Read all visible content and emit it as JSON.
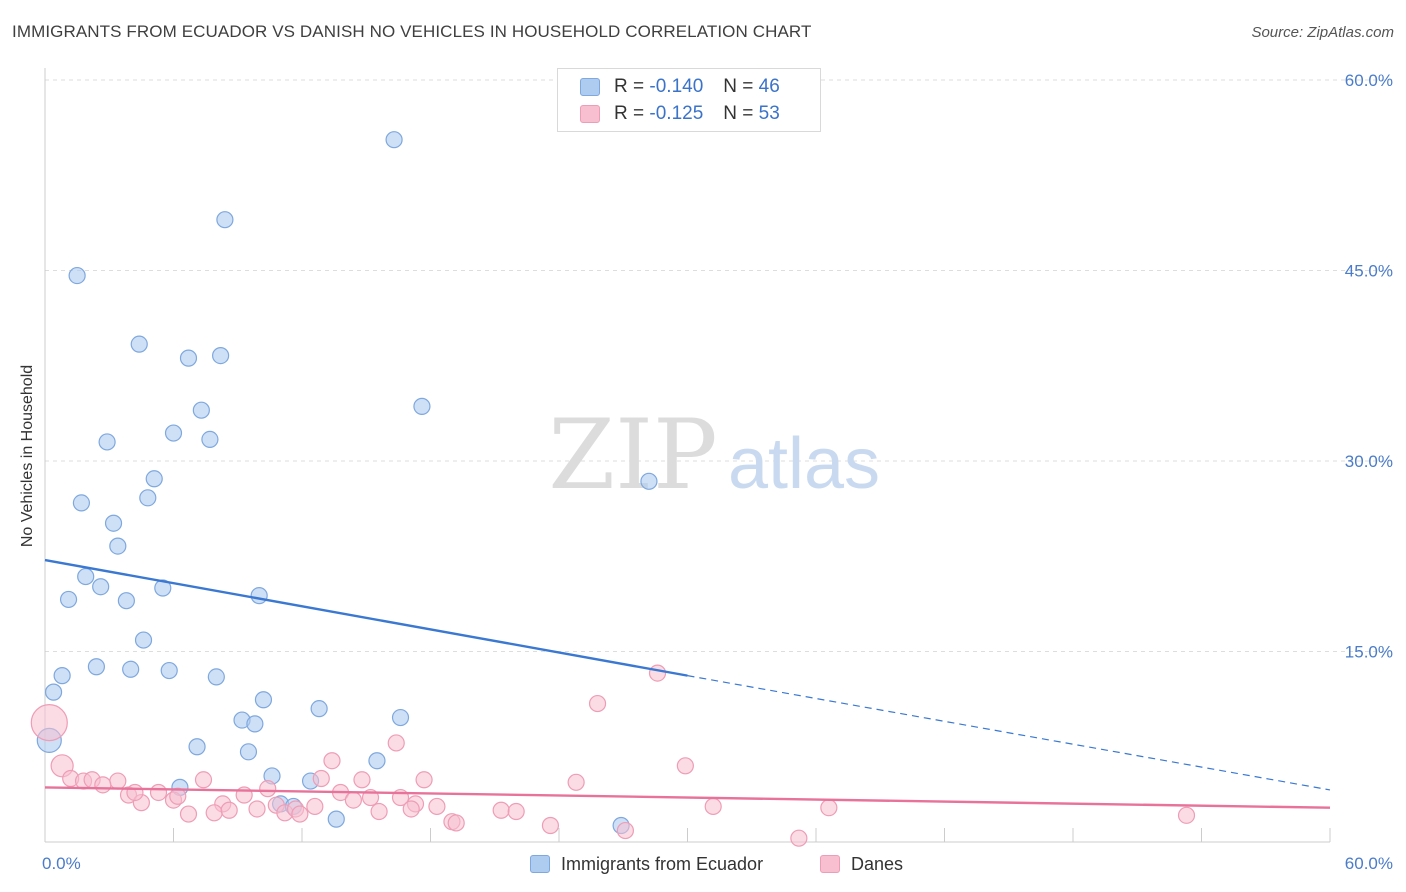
{
  "title": "IMMIGRANTS FROM ECUADOR VS DANISH NO VEHICLES IN HOUSEHOLD CORRELATION CHART",
  "source": "Source: ZipAtlas.com",
  "watermark": {
    "zip": "ZIP",
    "atlas": "atlas"
  },
  "legend": {
    "r_label": "R = ",
    "n_label": "N = ",
    "ecuador": {
      "r": "-0.140",
      "n": "46"
    },
    "danes": {
      "r": "-0.125",
      "n": "53"
    }
  },
  "colors": {
    "ecuador_fill": "#aecbf0",
    "ecuador_stroke": "#7fa8de",
    "ecuador_line": "#3a78d2",
    "danes_fill": "#f7bfd0",
    "danes_stroke": "#ee9db6",
    "danes_line": "#e8729a",
    "tick": "#4a7cc9",
    "grid": "#dddddd"
  },
  "chart_data": {
    "type": "scatter",
    "title": "IMMIGRANTS FROM ECUADOR VS DANISH NO VEHICLES IN HOUSEHOLD CORRELATION CHART",
    "xlabel": "",
    "ylabel": "No Vehicles in Household",
    "xlim": [
      0,
      60
    ],
    "ylim": [
      0,
      60
    ],
    "x_tick_labels": [
      "0.0%",
      "60.0%"
    ],
    "y_ticks": [
      15,
      30,
      45,
      60
    ],
    "y_tick_labels": [
      "15.0%",
      "30.0%",
      "45.0%",
      "60.0%"
    ],
    "grid": true,
    "legend_position": "top-center",
    "series": [
      {
        "name": "Immigrants from Ecuador",
        "r": -0.14,
        "n": 46,
        "trend": {
          "x0": 0,
          "y0": 22.2,
          "x1": 30,
          "y1": 13.1,
          "dashed_to_x": 60,
          "dashed_to_y": 4.1
        },
        "points": [
          [
            16.3,
            55.3
          ],
          [
            8.4,
            49.0
          ],
          [
            1.5,
            44.6
          ],
          [
            4.4,
            39.2
          ],
          [
            6.7,
            38.1
          ],
          [
            8.2,
            38.3
          ],
          [
            17.6,
            34.3
          ],
          [
            7.3,
            34.0
          ],
          [
            6.0,
            32.2
          ],
          [
            7.7,
            31.7
          ],
          [
            2.9,
            31.5
          ],
          [
            5.1,
            28.6
          ],
          [
            28.2,
            28.4
          ],
          [
            4.8,
            27.1
          ],
          [
            1.7,
            26.7
          ],
          [
            3.2,
            25.1
          ],
          [
            3.4,
            23.3
          ],
          [
            1.9,
            20.9
          ],
          [
            2.6,
            20.1
          ],
          [
            5.5,
            20.0
          ],
          [
            1.1,
            19.1
          ],
          [
            3.8,
            19.0
          ],
          [
            10.0,
            19.4
          ],
          [
            4.6,
            15.9
          ],
          [
            2.4,
            13.8
          ],
          [
            4.0,
            13.6
          ],
          [
            5.8,
            13.5
          ],
          [
            0.8,
            13.1
          ],
          [
            8.0,
            13.0
          ],
          [
            0.4,
            11.8
          ],
          [
            10.2,
            11.2
          ],
          [
            12.8,
            10.5
          ],
          [
            9.2,
            9.6
          ],
          [
            9.8,
            9.3
          ],
          [
            16.6,
            9.8
          ],
          [
            0.2,
            8.0
          ],
          [
            7.1,
            7.5
          ],
          [
            9.5,
            7.1
          ],
          [
            15.5,
            6.4
          ],
          [
            10.6,
            5.2
          ],
          [
            6.3,
            4.3
          ],
          [
            12.4,
            4.8
          ],
          [
            11.0,
            3.0
          ],
          [
            11.6,
            2.8
          ],
          [
            13.6,
            1.8
          ],
          [
            26.9,
            1.3
          ]
        ]
      },
      {
        "name": "Danes",
        "r": -0.125,
        "n": 53,
        "trend": {
          "x0": 0,
          "y0": 4.3,
          "x1": 60,
          "y1": 2.7
        },
        "points": [
          [
            0.2,
            9.4
          ],
          [
            0.8,
            6.0
          ],
          [
            28.6,
            13.3
          ],
          [
            25.8,
            10.9
          ],
          [
            16.4,
            7.8
          ],
          [
            29.9,
            6.0
          ],
          [
            13.4,
            6.4
          ],
          [
            1.2,
            5.0
          ],
          [
            1.8,
            4.8
          ],
          [
            2.2,
            4.9
          ],
          [
            3.4,
            4.8
          ],
          [
            2.7,
            4.5
          ],
          [
            5.3,
            3.9
          ],
          [
            3.9,
            3.7
          ],
          [
            4.5,
            3.1
          ],
          [
            4.2,
            3.9
          ],
          [
            6.0,
            3.3
          ],
          [
            6.2,
            3.6
          ],
          [
            7.4,
            4.9
          ],
          [
            8.3,
            3.0
          ],
          [
            7.9,
            2.3
          ],
          [
            6.7,
            2.2
          ],
          [
            8.6,
            2.5
          ],
          [
            9.3,
            3.7
          ],
          [
            10.4,
            4.2
          ],
          [
            10.8,
            2.9
          ],
          [
            11.2,
            2.3
          ],
          [
            11.7,
            2.6
          ],
          [
            11.9,
            2.2
          ],
          [
            12.6,
            2.8
          ],
          [
            12.9,
            5.0
          ],
          [
            13.8,
            3.9
          ],
          [
            14.4,
            3.3
          ],
          [
            14.8,
            4.9
          ],
          [
            15.2,
            3.5
          ],
          [
            15.6,
            2.4
          ],
          [
            16.6,
            3.5
          ],
          [
            17.3,
            3.0
          ],
          [
            17.7,
            4.9
          ],
          [
            17.1,
            2.6
          ],
          [
            18.3,
            2.8
          ],
          [
            19.0,
            1.6
          ],
          [
            19.2,
            1.5
          ],
          [
            21.3,
            2.5
          ],
          [
            22.0,
            2.4
          ],
          [
            23.6,
            1.3
          ],
          [
            24.8,
            4.7
          ],
          [
            27.1,
            0.9
          ],
          [
            31.2,
            2.8
          ],
          [
            35.2,
            0.3
          ],
          [
            36.6,
            2.7
          ],
          [
            53.3,
            2.1
          ],
          [
            9.9,
            2.6
          ]
        ]
      }
    ]
  },
  "bottom_legend": [
    {
      "label": "Immigrants from Ecuador"
    },
    {
      "label": "Danes"
    }
  ]
}
